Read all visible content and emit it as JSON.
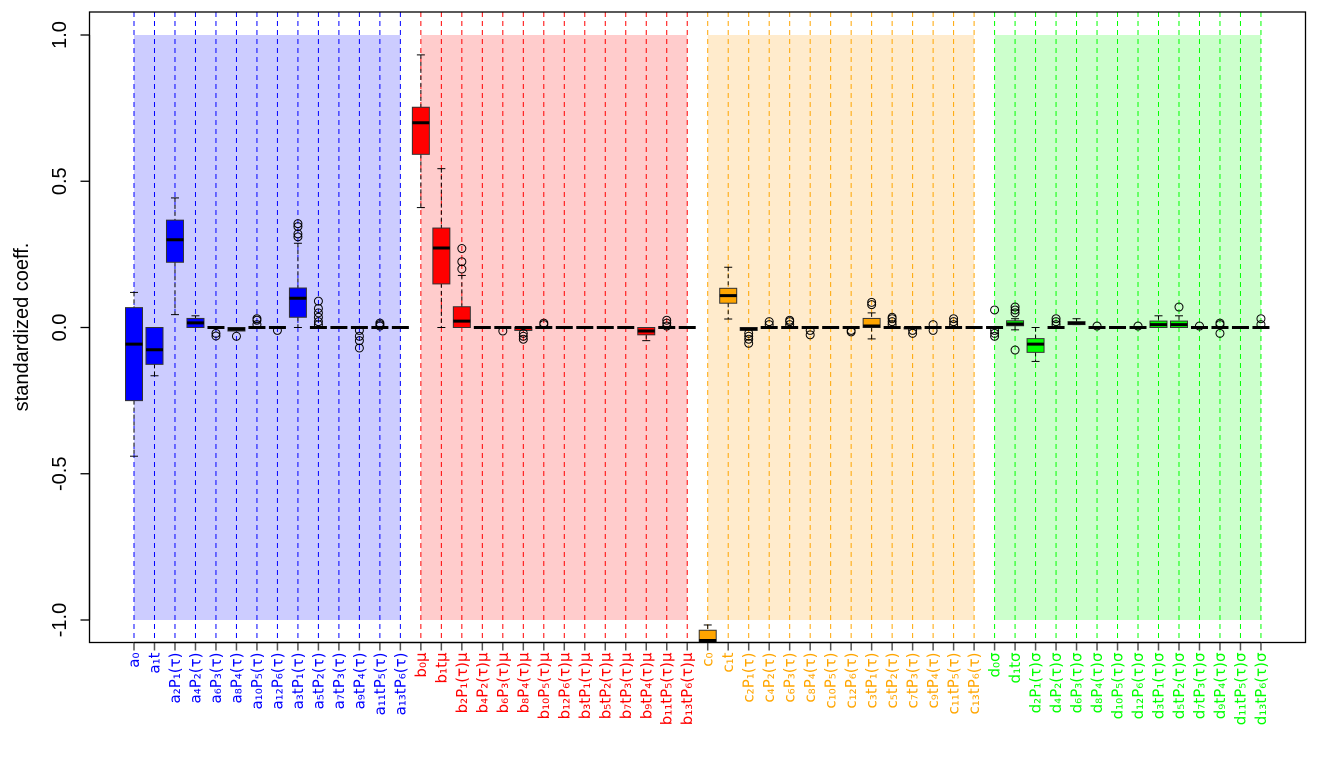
{
  "chart_data": {
    "type": "boxplot",
    "title": "",
    "xlabel": "",
    "ylabel": "standardized coeff.",
    "ylim": [
      -1.08,
      1.08
    ],
    "yticks": [
      "-1.0",
      "-0.5",
      "0.0",
      "0.5",
      "1.0"
    ],
    "ytick_values": [
      -1.0,
      -0.5,
      0.0,
      0.5,
      1.0
    ],
    "grid": false,
    "shaded_band_range": [
      -1.0,
      1.0
    ],
    "groups": [
      {
        "color": "#0000FF",
        "band_color": "#CCCCFF",
        "categories": [
          "a₀",
          "a₁t",
          "a₂P₁(τ)",
          "a₄P₂(τ)",
          "a₆P₃(τ)",
          "a₈P₄(τ)",
          "a₁₀P₅(τ)",
          "a₁₂P₆(τ)",
          "a₃tP₁(τ)",
          "a₅tP₂(τ)",
          "a₇tP₃(τ)",
          "a₉tP₄(τ)",
          "a₁₁tP₅(τ)",
          "a₁₃tP₆(τ)"
        ],
        "boxes": [
          {
            "stats": [
              -0.44,
              -0.25,
              -0.057,
              0.068,
              0.12
            ],
            "outliers": []
          },
          {
            "stats": [
              -0.165,
              -0.126,
              -0.076,
              0.0,
              0.0
            ],
            "outliers": []
          },
          {
            "stats": [
              0.044,
              0.223,
              0.3,
              0.367,
              0.443
            ],
            "outliers": []
          },
          {
            "stats": [
              0.0,
              0.0,
              0.016,
              0.031,
              0.04
            ],
            "outliers": []
          },
          {
            "stats": [
              0,
              0,
              0,
              0,
              0
            ],
            "outliers": [
              -0.02,
              -0.029
            ]
          },
          {
            "stats": [
              -0.012,
              -0.012,
              -0.005,
              0.0,
              0.0
            ],
            "outliers": [
              -0.03
            ]
          },
          {
            "stats": [
              0,
              0,
              0,
              0,
              0
            ],
            "outliers": [
              0.01,
              0.025,
              0.03
            ]
          },
          {
            "stats": [
              0,
              0,
              0,
              0,
              0
            ],
            "outliers": [
              -0.01
            ]
          },
          {
            "stats": [
              0.0,
              0.035,
              0.1,
              0.135,
              0.288
            ],
            "outliers": [
              0.31,
              0.32,
              0.345,
              0.355
            ]
          },
          {
            "stats": [
              0,
              0,
              0,
              0,
              0
            ],
            "outliers": [
              0.01,
              0.02,
              0.035,
              0.05,
              0.065,
              0.09
            ]
          },
          {
            "stats": [
              0,
              0,
              0,
              0,
              0
            ],
            "outliers": []
          },
          {
            "stats": [
              0,
              0,
              0,
              0,
              0
            ],
            "outliers": [
              -0.01,
              -0.03,
              -0.045,
              -0.07
            ]
          },
          {
            "stats": [
              0,
              0,
              0,
              0,
              0
            ],
            "outliers": [
              0.005,
              0.01,
              0.015
            ]
          },
          {
            "stats": [
              0,
              0,
              0,
              0,
              0
            ],
            "outliers": []
          }
        ]
      },
      {
        "color": "#FF0000",
        "band_color": "#FFCCCC",
        "categories": [
          "b₀μ",
          "b₁tμ",
          "b₂P₁(τ)μ",
          "b₄P₂(τ)μ",
          "b₆P₃(τ)μ",
          "b₈P₄(τ)μ",
          "b₁₀P₅(τ)μ",
          "b₁₂P₆(τ)μ",
          "b₃tP₁(τ)μ",
          "b₅tP₂(τ)μ",
          "b₇tP₃(τ)μ",
          "b₉tP₄(τ)μ",
          "b₁₁tP₅(τ)μ",
          "b₁₃tP₆(τ)μ"
        ],
        "boxes": [
          {
            "stats": [
              0.41,
              0.592,
              0.7,
              0.753,
              0.932
            ],
            "outliers": []
          },
          {
            "stats": [
              0.0,
              0.149,
              0.272,
              0.34,
              0.543
            ],
            "outliers": []
          },
          {
            "stats": [
              0.0,
              0.0,
              0.022,
              0.071,
              0.178
            ],
            "outliers": [
              0.2,
              0.225,
              0.27
            ]
          },
          {
            "stats": [
              0,
              0,
              0,
              0,
              0
            ],
            "outliers": []
          },
          {
            "stats": [
              0,
              0,
              0,
              0,
              0
            ],
            "outliers": [
              -0.012
            ]
          },
          {
            "stats": [
              -0.01,
              -0.01,
              0,
              0,
              0
            ],
            "outliers": [
              -0.02,
              -0.03,
              -0.04
            ]
          },
          {
            "stats": [
              0,
              0,
              0,
              0,
              0
            ],
            "outliers": [
              0.01,
              0.015
            ]
          },
          {
            "stats": [
              0,
              0,
              0,
              0,
              0
            ],
            "outliers": []
          },
          {
            "stats": [
              0,
              0,
              0,
              0,
              0
            ],
            "outliers": []
          },
          {
            "stats": [
              0,
              0,
              0,
              0,
              0
            ],
            "outliers": []
          },
          {
            "stats": [
              0,
              0,
              0,
              0,
              0
            ],
            "outliers": []
          },
          {
            "stats": [
              -0.045,
              -0.025,
              -0.012,
              0.0,
              0.0
            ],
            "outliers": []
          },
          {
            "stats": [
              0,
              0,
              0,
              0,
              0
            ],
            "outliers": [
              0.005,
              0.015,
              0.025
            ]
          },
          {
            "stats": [
              0,
              0,
              0,
              0,
              0
            ],
            "outliers": []
          }
        ]
      },
      {
        "color": "#FFA500",
        "band_color": "#FFEBCC",
        "categories": [
          "c₀",
          "c₁t",
          "c₂P₁(τ)",
          "c₄P₂(τ)",
          "c₆P₃(τ)",
          "c₈P₄(τ)",
          "c₁₀P₅(τ)",
          "c₁₂P₆(τ)",
          "c₃tP₁(τ)",
          "c₅tP₂(τ)",
          "c₇tP₃(τ)",
          "c₉tP₄(τ)",
          "c₁₁tP₅(τ)",
          "c₁₃tP₆(τ)"
        ],
        "boxes": [
          {
            "stats": [
              -1.09,
              -1.09,
              -1.07,
              -1.035,
              -1.017
            ],
            "outliers": []
          },
          {
            "stats": [
              0.029,
              0.083,
              0.109,
              0.134,
              0.206
            ],
            "outliers": []
          },
          {
            "stats": [
              -0.01,
              -0.01,
              -0.005,
              0.0,
              0.0
            ],
            "outliers": [
              -0.02,
              -0.03,
              -0.04,
              -0.054
            ]
          },
          {
            "stats": [
              0,
              0,
              0,
              0,
              0
            ],
            "outliers": [
              0.01,
              0.02
            ]
          },
          {
            "stats": [
              0,
              0,
              0,
              0,
              0
            ],
            "outliers": [
              0.01,
              0.02,
              0.025
            ]
          },
          {
            "stats": [
              0,
              0,
              0,
              0,
              0
            ],
            "outliers": [
              -0.01,
              -0.025
            ]
          },
          {
            "stats": [
              0,
              0,
              0,
              0,
              0
            ],
            "outliers": []
          },
          {
            "stats": [
              0,
              0,
              0,
              0,
              0
            ],
            "outliers": [
              -0.01,
              -0.015
            ]
          },
          {
            "stats": [
              -0.039,
              0.0,
              0.005,
              0.031,
              0.05
            ],
            "outliers": [
              0.078,
              0.086
            ]
          },
          {
            "stats": [
              0,
              0,
              0,
              0,
              0
            ],
            "outliers": [
              0.01,
              0.02,
              0.03,
              0.035
            ]
          },
          {
            "stats": [
              -0.005,
              -0.005,
              0,
              0,
              0
            ],
            "outliers": [
              -0.01,
              -0.02
            ]
          },
          {
            "stats": [
              0,
              0,
              0,
              0,
              0
            ],
            "outliers": [
              0.01,
              -0.01
            ]
          },
          {
            "stats": [
              0,
              0,
              0,
              0,
              0
            ],
            "outliers": [
              0.01,
              0.02,
              0.03
            ]
          },
          {
            "stats": [
              0,
              0,
              0,
              0,
              0
            ],
            "outliers": []
          }
        ]
      },
      {
        "color": "#00FF00",
        "band_color": "#CCFFCC",
        "categories": [
          "d₀σ",
          "d₁tσ",
          "d₂P₁(τ)σ",
          "d₄P₂(τ)σ",
          "d₆P₃(τ)σ",
          "d₈P₄(τ)σ",
          "d₁₀P₅(τ)σ",
          "d₁₂P₆(τ)σ",
          "d₃tP₁(τ)σ",
          "d₅tP₂(τ)σ",
          "d₇tP₃(τ)σ",
          "d₉tP₄(τ)σ",
          "d₁₁tP₅(τ)σ",
          "d₁₃tP₆(τ)σ"
        ],
        "boxes": [
          {
            "stats": [
              0,
              0,
              0,
              0,
              0
            ],
            "outliers": [
              0.06,
              -0.01,
              -0.02,
              -0.03
            ]
          },
          {
            "stats": [
              -0.008,
              0.006,
              0.012,
              0.023,
              0.03
            ],
            "outliers": [
              0.05,
              0.06,
              0.07,
              -0.077
            ]
          },
          {
            "stats": [
              -0.116,
              -0.085,
              -0.057,
              -0.038,
              0.0
            ],
            "outliers": []
          },
          {
            "stats": [
              0,
              0,
              0,
              0,
              0
            ],
            "outliers": [
              0.01,
              0.02,
              0.03
            ]
          },
          {
            "stats": [
              0.01,
              0.01,
              0.015,
              0.02,
              0.03
            ],
            "outliers": []
          },
          {
            "stats": [
              0,
              0,
              0,
              0,
              0
            ],
            "outliers": [
              0.005
            ]
          },
          {
            "stats": [
              0,
              0,
              0,
              0,
              0
            ],
            "outliers": []
          },
          {
            "stats": [
              0,
              0,
              0,
              0,
              0
            ],
            "outliers": [
              0.005
            ]
          },
          {
            "stats": [
              0.0,
              0.0,
              0.01,
              0.022,
              0.04
            ],
            "outliers": []
          },
          {
            "stats": [
              0.0,
              0.0,
              0.01,
              0.022,
              0.04
            ],
            "outliers": [
              0.07
            ]
          },
          {
            "stats": [
              0,
              0,
              0,
              0,
              0
            ],
            "outliers": [
              0.005
            ]
          },
          {
            "stats": [
              0,
              0,
              0,
              0,
              0
            ],
            "outliers": [
              0.01,
              0.015,
              -0.02
            ]
          },
          {
            "stats": [
              0,
              0,
              0,
              0,
              0
            ],
            "outliers": []
          },
          {
            "stats": [
              0,
              0,
              0,
              0,
              0
            ],
            "outliers": [
              0.01,
              0.03
            ]
          }
        ]
      }
    ]
  }
}
